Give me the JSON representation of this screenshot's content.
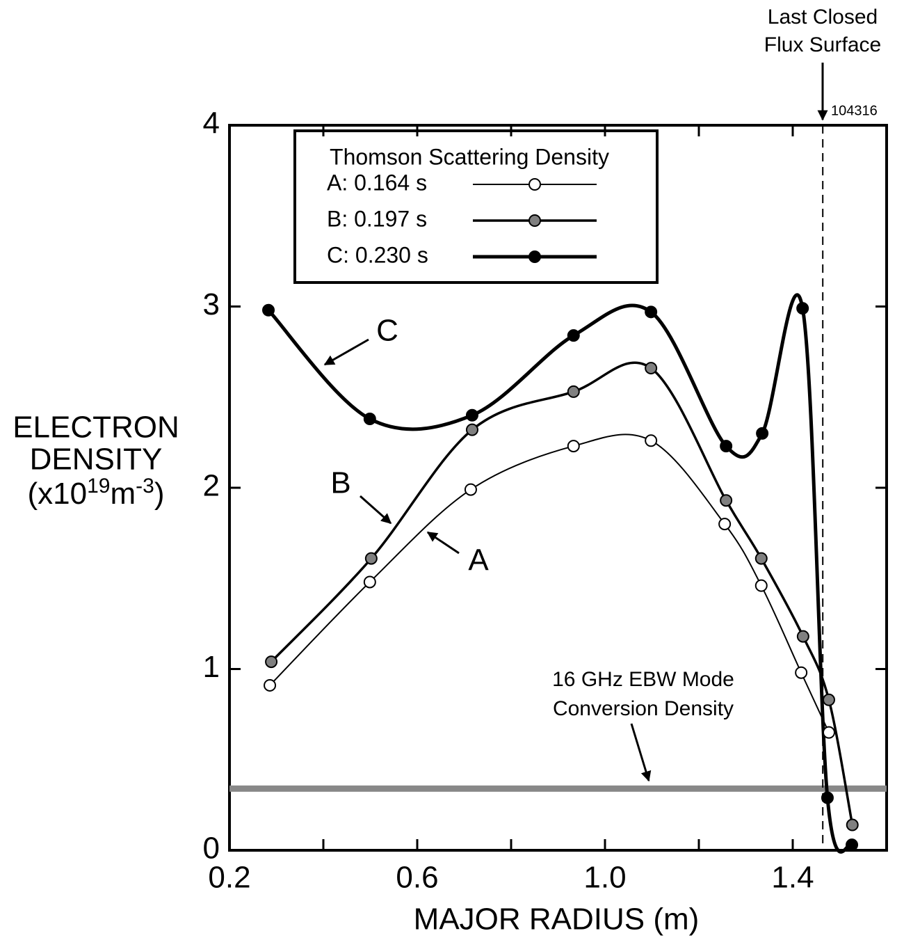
{
  "chart_data": {
    "type": "line",
    "xlabel": "MAJOR RADIUS (m)",
    "ylabel": {
      "lines": [
        "ELECTRON",
        "DENSITY"
      ],
      "unit": [
        "(x10",
        "19",
        "m",
        "-3",
        ")"
      ]
    },
    "xlim": [
      0.2,
      1.6
    ],
    "ylim": [
      0,
      4
    ],
    "xticks": [
      0.2,
      0.6,
      {
        "value": 1,
        "label": "1.0"
      },
      1.4
    ],
    "x_minor_ticks": [
      0.4,
      0.8,
      1.2
    ],
    "yticks": [
      0,
      1,
      2,
      3,
      4
    ],
    "legend_title": "Thomson Scattering Density",
    "series": [
      {
        "name": "A: 0.164 s",
        "color": "#000000",
        "marker_fill": "#ffffff",
        "line_width": 2,
        "x": [
          0.286,
          0.499,
          0.714,
          0.933,
          1.098,
          1.255,
          1.333,
          1.418,
          1.477
        ],
        "values": [
          0.91,
          1.48,
          1.99,
          2.23,
          2.26,
          1.8,
          1.46,
          0.98,
          0.65
        ]
      },
      {
        "name": "B: 0.197 s",
        "color": "#000000",
        "marker_fill": "#808080",
        "line_width": 3.5,
        "x": [
          0.289,
          0.502,
          0.717,
          0.933,
          1.098,
          1.258,
          1.333,
          1.422,
          1.477,
          1.527
        ],
        "values": [
          1.04,
          1.61,
          2.32,
          2.53,
          2.66,
          1.93,
          1.61,
          1.18,
          0.83,
          0.14
        ]
      },
      {
        "name": "C: 0.230 s",
        "color": "#000000",
        "marker_fill": "#000000",
        "line_width": 5,
        "x": [
          0.283,
          0.499,
          0.717,
          0.933,
          1.098,
          1.258,
          1.335,
          1.421,
          1.474,
          1.526
        ],
        "values": [
          2.98,
          2.38,
          2.4,
          2.84,
          2.97,
          2.23,
          2.3,
          2.99,
          0.29,
          0.03
        ]
      }
    ],
    "curve_labels": [
      "A",
      "B",
      "C"
    ],
    "lcfs_x": 1.464,
    "lcfs_label": [
      "Last Closed",
      "Flux Surface"
    ],
    "shot": "104316",
    "ebw_density": 0.34,
    "ebw_label": [
      "16 GHz EBW Mode",
      "Conversion Density"
    ]
  }
}
